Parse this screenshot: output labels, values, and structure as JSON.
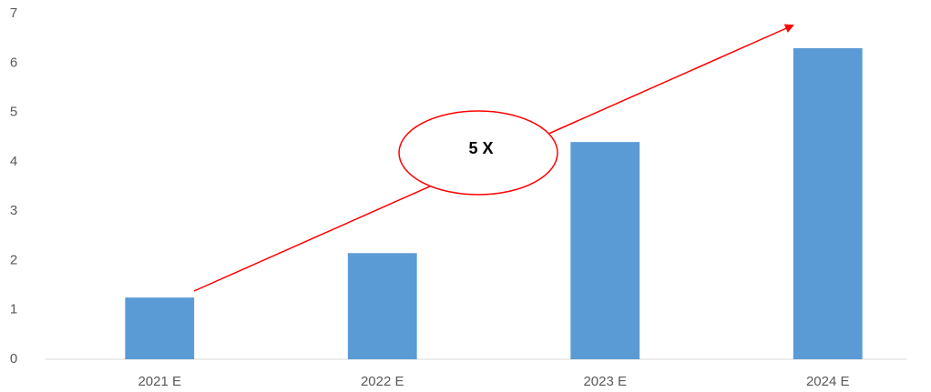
{
  "chart_data": {
    "type": "bar",
    "categories": [
      "2021 E",
      "2022 E",
      "2023 E",
      "2024 E"
    ],
    "values": [
      1.25,
      2.15,
      4.4,
      6.3
    ],
    "color": "#5b9bd5",
    "ylim": [
      0,
      7
    ],
    "yticks": [
      0,
      1,
      2,
      3,
      4,
      5,
      6,
      7
    ],
    "grid": false,
    "annotation": "5 X"
  }
}
